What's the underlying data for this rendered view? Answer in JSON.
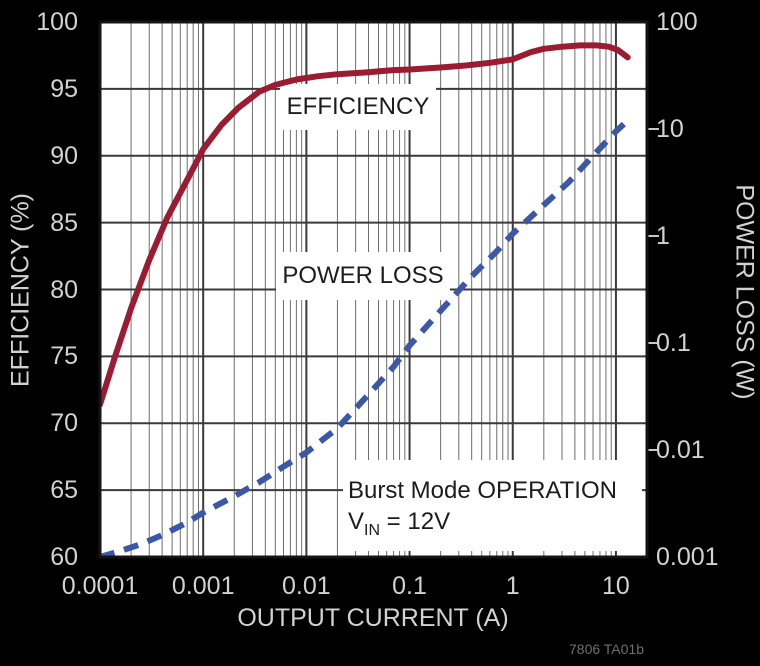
{
  "figure": {
    "code": "7806 TA01b",
    "background_color": "#000000",
    "plot_background_color": "#ffffff",
    "axis_text_color": "#d2d2d2"
  },
  "labels": {
    "efficiency_curve": "EFFICIENCY",
    "power_loss_curve": "POWER LOSS",
    "annotation_line1": "Burst Mode OPERATION",
    "vin_pre": "V",
    "vin_sub": "IN",
    "vin_post": " = 12V"
  },
  "chart_data": {
    "type": "line",
    "title": "",
    "xlabel": "OUTPUT CURRENT (A)",
    "ylabel_left": "EFFICIENCY (%)",
    "ylabel_right": "POWER LOSS (W)",
    "grid": "log-log, full minor vertical gridlines, major horizontal every 5%",
    "legend_position": "inline-labels",
    "x_axis": {
      "scale": "log",
      "min": 0.0001,
      "max": 20,
      "ticks": [
        0.0001,
        0.001,
        0.01,
        0.1,
        1,
        10
      ],
      "tick_labels": [
        "0.0001",
        "0.001",
        "0.01",
        "0.1",
        "1",
        "10"
      ]
    },
    "y_axis_left": {
      "scale": "linear",
      "min": 60,
      "max": 100,
      "ticks": [
        100,
        95,
        90,
        85,
        80,
        75,
        70,
        65,
        60
      ],
      "tick_labels": [
        "100",
        "95",
        "90",
        "85",
        "80",
        "75",
        "70",
        "65",
        "60"
      ]
    },
    "y_axis_right": {
      "scale": "log",
      "min": 0.001,
      "max": 100,
      "ticks": [
        100,
        10,
        1,
        0.1,
        0.01,
        0.001
      ],
      "tick_labels": [
        "100",
        "10",
        "1",
        "0.1",
        "0.01",
        "0.001"
      ]
    },
    "series": [
      {
        "name": "EFFICIENCY",
        "axis": "left",
        "units": "%",
        "color": "#9b1b33",
        "style": "solid",
        "points": [
          [
            0.0001,
            71.4
          ],
          [
            0.00014,
            75.0
          ],
          [
            0.0002,
            78.6
          ],
          [
            0.0003,
            82.2
          ],
          [
            0.00045,
            85.4
          ],
          [
            0.0007,
            88.2
          ],
          [
            0.001,
            90.5
          ],
          [
            0.0015,
            92.3
          ],
          [
            0.0022,
            93.6
          ],
          [
            0.0035,
            94.8
          ],
          [
            0.005,
            95.3
          ],
          [
            0.008,
            95.7
          ],
          [
            0.013,
            95.95
          ],
          [
            0.02,
            96.1
          ],
          [
            0.04,
            96.25
          ],
          [
            0.07,
            96.4
          ],
          [
            0.1,
            96.45
          ],
          [
            0.2,
            96.6
          ],
          [
            0.35,
            96.75
          ],
          [
            0.6,
            96.95
          ],
          [
            1.0,
            97.2
          ],
          [
            1.5,
            97.75
          ],
          [
            2.0,
            98.0
          ],
          [
            3.0,
            98.15
          ],
          [
            4.5,
            98.25
          ],
          [
            6.5,
            98.25
          ],
          [
            8.5,
            98.15
          ],
          [
            10.5,
            97.9
          ],
          [
            13,
            97.35
          ]
        ]
      },
      {
        "name": "POWER LOSS",
        "axis": "right",
        "units": "W",
        "color": "#3a57a8",
        "style": "dashed",
        "points": [
          [
            0.0001,
            0.001
          ],
          [
            0.00015,
            0.00112
          ],
          [
            0.00025,
            0.00132
          ],
          [
            0.0004,
            0.0016
          ],
          [
            0.0007,
            0.0021
          ],
          [
            0.001,
            0.0026
          ],
          [
            0.002,
            0.0037
          ],
          [
            0.0035,
            0.005
          ],
          [
            0.006,
            0.007
          ],
          [
            0.01,
            0.0095
          ],
          [
            0.02,
            0.016
          ],
          [
            0.04,
            0.033
          ],
          [
            0.07,
            0.06
          ],
          [
            0.1,
            0.095
          ],
          [
            0.2,
            0.2
          ],
          [
            0.4,
            0.42
          ],
          [
            0.7,
            0.72
          ],
          [
            1.0,
            1.05
          ],
          [
            2.0,
            1.95
          ],
          [
            3.5,
            3.2
          ],
          [
            6.0,
            5.6
          ],
          [
            10,
            9.5
          ],
          [
            13,
            12.0
          ]
        ]
      }
    ],
    "annotations": [
      "Burst Mode OPERATION",
      "VIN = 12V"
    ]
  }
}
